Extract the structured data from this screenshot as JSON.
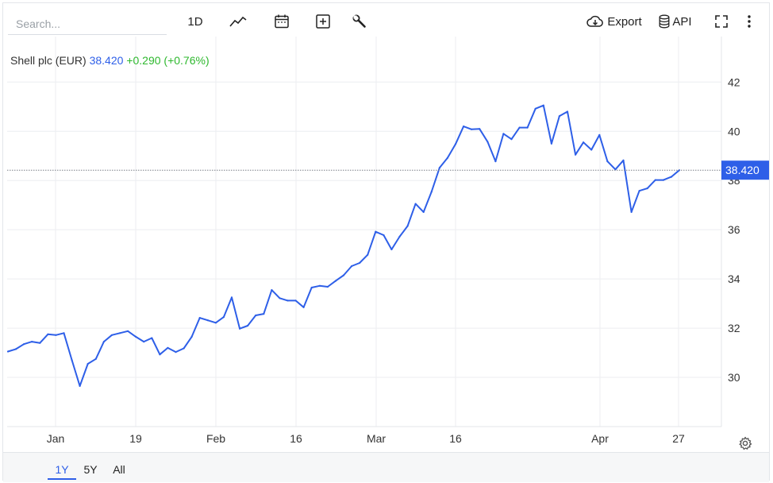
{
  "toolbar": {
    "search_placeholder": "Search...",
    "interval_label": "1D",
    "export_label": "Export",
    "api_label": "API",
    "icons": [
      "line-chart-icon",
      "calendar-icon",
      "plus-box-icon",
      "wrench-icon",
      "cloud-download-icon",
      "database-icon",
      "fullscreen-icon",
      "more-vertical-icon"
    ]
  },
  "legend": {
    "name": "Shell plc (EUR)",
    "price": "38.420",
    "change": "+0.290 (+0.76%)"
  },
  "ranges": [
    {
      "label": "1Y",
      "active": true
    },
    {
      "label": "5Y",
      "active": false
    },
    {
      "label": "All",
      "active": false
    }
  ],
  "colors": {
    "line": "#2e5fe8",
    "positive": "#2eb82e",
    "price_tag_bg": "#2e5fe8"
  },
  "chart_data": {
    "type": "line",
    "series_name": "Shell plc (EUR)",
    "x_labels": [
      "Jan",
      "19",
      "Feb",
      "16",
      "Mar",
      "16",
      "Apr",
      "27"
    ],
    "y_ticks": [
      30,
      32,
      34,
      36,
      38,
      40,
      42
    ],
    "ylim": [
      28.0,
      43.85
    ],
    "last_value_label": "38.420",
    "grid": true,
    "values": [
      31.05,
      31.15,
      31.35,
      31.45,
      31.4,
      31.75,
      31.72,
      31.8,
      30.7,
      29.65,
      30.55,
      30.75,
      31.45,
      31.72,
      31.8,
      31.88,
      31.65,
      31.45,
      31.6,
      30.93,
      31.2,
      31.03,
      31.18,
      31.65,
      32.42,
      32.32,
      32.22,
      32.45,
      33.25,
      31.98,
      32.1,
      32.52,
      32.58,
      33.55,
      33.22,
      33.12,
      33.12,
      32.85,
      33.65,
      33.72,
      33.68,
      33.92,
      34.15,
      34.52,
      34.65,
      34.98,
      35.92,
      35.78,
      35.2,
      35.72,
      36.15,
      37.05,
      36.72,
      37.55,
      38.52,
      38.92,
      39.48,
      40.2,
      40.08,
      40.1,
      39.58,
      38.78,
      39.9,
      39.68,
      40.15,
      40.15,
      40.92,
      41.05,
      39.5,
      40.62,
      40.8,
      39.05,
      39.55,
      39.25,
      39.85,
      38.78,
      38.45,
      38.82,
      36.72,
      37.58,
      37.68,
      38.02,
      38.02,
      38.15,
      38.42
    ]
  }
}
